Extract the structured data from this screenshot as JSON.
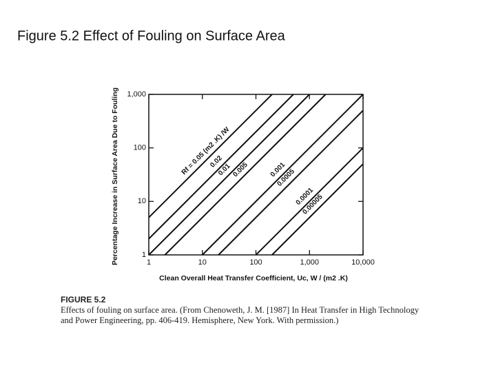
{
  "chart_data": {
    "type": "line",
    "title": "Figure 5.2  Effect of Fouling on Surface Area",
    "x_label": "Clean Overall Heat Transfer Coefficient, Uc, W / (m2 .K)",
    "y_label": "Percentage Increase in Surface Area Due to Fouling",
    "caption_title": "FIGURE 5.2",
    "caption": "Effects of fouling on surface area. (From Chenoweth, J. M. [1987] In Heat Transfer in High Technology and Power Engineering, pp. 406-419. Hemisphere, New York. With permission.)",
    "log_x": true,
    "log_y": true,
    "grid": false,
    "xlim": [
      1,
      10000
    ],
    "ylim": [
      1,
      1000
    ],
    "xticks": [
      1,
      10,
      100,
      {
        "value": 1000,
        "label": "1,000"
      },
      {
        "value": 10000,
        "label": "10,000"
      }
    ],
    "yticks": [
      1,
      10,
      100,
      {
        "value": 1000,
        "label": "1,000"
      }
    ],
    "series": [
      {
        "name": "Rf = 0.05 (m2 .K) /W",
        "color": "#111111",
        "x": [
          1,
          200
        ],
        "values": [
          5,
          1000
        ]
      },
      {
        "name": "0.02",
        "color": "#111111",
        "x": [
          1,
          500
        ],
        "values": [
          2,
          1000
        ]
      },
      {
        "name": "0.01",
        "color": "#111111",
        "x": [
          1,
          1000
        ],
        "values": [
          1,
          1000
        ]
      },
      {
        "name": "0.005",
        "color": "#111111",
        "x": [
          2,
          2000
        ],
        "values": [
          1,
          1000
        ]
      },
      {
        "name": "0.001",
        "color": "#111111",
        "x": [
          10,
          10000
        ],
        "values": [
          1,
          1000
        ]
      },
      {
        "name": "0.0005",
        "color": "#111111",
        "x": [
          20,
          10000
        ],
        "values": [
          1,
          500
        ]
      },
      {
        "name": "0.0001",
        "color": "#111111",
        "x": [
          100,
          10000
        ],
        "values": [
          1,
          100
        ]
      },
      {
        "name": "0.00005",
        "color": "#111111",
        "x": [
          200,
          10000
        ],
        "values": [
          1,
          50
        ]
      }
    ]
  }
}
